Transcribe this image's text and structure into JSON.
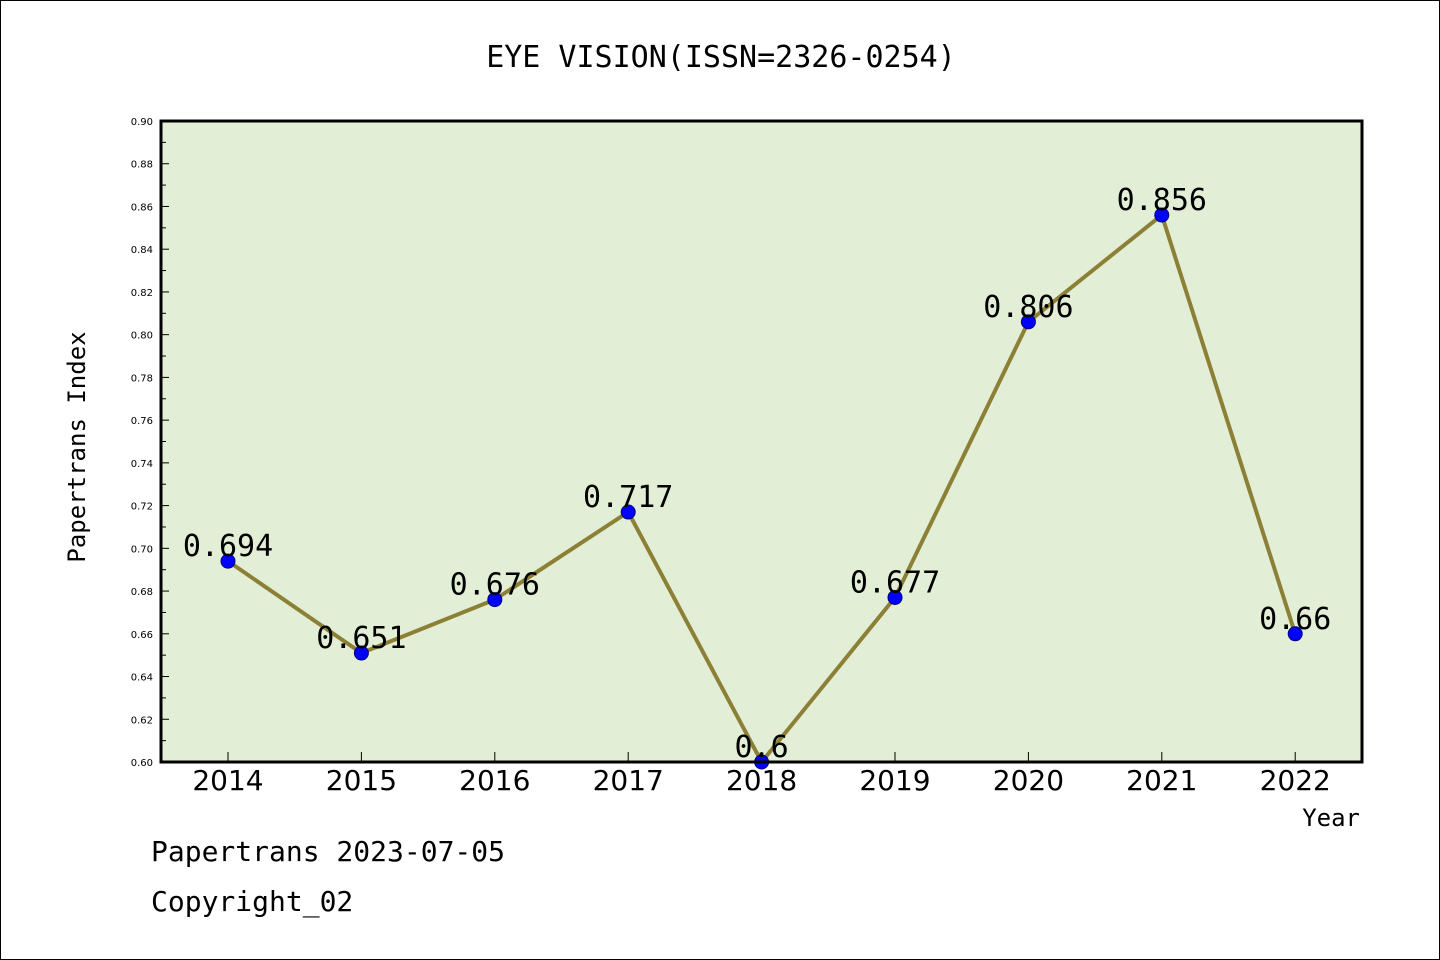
{
  "chart_data": {
    "type": "line",
    "title": "EYE VISION(ISSN=2326-0254)",
    "xlabel": "Year",
    "ylabel": "Papertrans Index",
    "categories": [
      "2014",
      "2015",
      "2016",
      "2017",
      "2018",
      "2019",
      "2020",
      "2021",
      "2022"
    ],
    "series": [
      {
        "values": [
          0.694,
          0.651,
          0.676,
          0.717,
          0.6,
          0.677,
          0.806,
          0.856,
          0.66
        ],
        "labels": [
          "0.694",
          "0.651",
          "0.676",
          "0.717",
          "0.6",
          "0.677",
          "0.806",
          "0.856",
          "0.66"
        ]
      }
    ],
    "ylim": [
      0.6,
      0.9
    ],
    "yticks": [
      "0.60",
      "0.62",
      "0.64",
      "0.66",
      "0.68",
      "0.70",
      "0.72",
      "0.74",
      "0.76",
      "0.78",
      "0.80",
      "0.82",
      "0.84",
      "0.86",
      "0.88",
      "0.90"
    ],
    "grid": false,
    "colors": {
      "plot_background": "#e2efd6",
      "line": "#8b8035",
      "marker": "#0000ff"
    }
  },
  "footer": {
    "line1": "Papertrans 2023-07-05",
    "line2": "Copyright_02"
  }
}
